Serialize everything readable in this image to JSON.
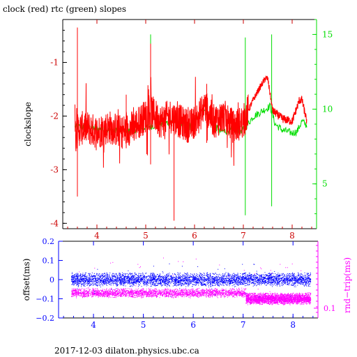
{
  "title": "clock (red) rtc (green) slopes",
  "footer": "2017-12-03 dilaton.physics.ubc.ca",
  "colors": {
    "clock": "#ff0000",
    "rtc": "#00dd00",
    "offset": "#0000ff",
    "rndtrip": "#ff00ff",
    "axis": "#000000"
  },
  "chart_data": [
    {
      "type": "line",
      "title": "clock (red) rtc (green) slopes",
      "xlabel": "",
      "ylabel": "clockslope",
      "y2label": "",
      "xlim": [
        3.3,
        8.5
      ],
      "ylim": [
        -4.1,
        -0.2
      ],
      "y2lim": [
        2.0,
        16.0
      ],
      "xticks": [
        "4",
        "5",
        "6",
        "7",
        "8"
      ],
      "yticks": [
        "-1",
        "-2",
        "-3",
        "-4"
      ],
      "y2ticks": [
        "5",
        "10",
        "15"
      ],
      "series": [
        {
          "color": "#ff0000",
          "axis": "left",
          "x": [
            3.55,
            3.75,
            4.0,
            4.25,
            4.5,
            4.75,
            5.0,
            5.1,
            5.3,
            5.5,
            5.7,
            5.9,
            6.1,
            6.2,
            6.4,
            6.6,
            6.8,
            7.0,
            7.05,
            7.2,
            7.35,
            7.45,
            7.5,
            7.6,
            7.8,
            8.0,
            8.15,
            8.2,
            8.3
          ],
          "y": [
            -2.3,
            -2.2,
            -2.3,
            -2.2,
            -2.3,
            -2.2,
            -2.0,
            -1.9,
            -2.1,
            -2.0,
            -2.1,
            -2.2,
            -2.0,
            -1.8,
            -2.1,
            -2.0,
            -2.2,
            -2.1,
            -2.0,
            -1.7,
            -1.45,
            -1.3,
            -1.3,
            -1.9,
            -2.05,
            -2.1,
            -1.7,
            -1.7,
            -2.1
          ],
          "spikes": [
            {
              "x": 3.6,
              "y1": -3.5,
              "y2": -0.35
            },
            {
              "x": 5.1,
              "y1": -2.9,
              "y2": -0.65
            },
            {
              "x": 5.58,
              "y1": -3.95,
              "y2": -2.2
            },
            {
              "x": 4.6,
              "y1": -2.6,
              "y2": -1.6
            },
            {
              "x": 6.25,
              "y1": -2.5,
              "y2": -1.4
            }
          ]
        },
        {
          "color": "#00dd00",
          "axis": "right",
          "x": [
            3.55,
            3.8,
            4.2,
            4.6,
            5.0,
            5.3,
            5.6,
            5.9,
            6.2,
            6.5,
            6.8,
            7.0,
            7.2,
            7.45,
            7.55,
            7.65,
            7.8,
            8.0,
            8.1,
            8.2,
            8.3
          ],
          "y": [
            8.8,
            8.8,
            8.6,
            8.5,
            8.8,
            9.0,
            9.2,
            8.8,
            10.0,
            8.5,
            8.6,
            8.6,
            9.5,
            10.0,
            10.2,
            9.0,
            8.6,
            8.4,
            8.5,
            9.2,
            8.9
          ],
          "spikes": [
            {
              "x": 7.04,
              "y1": 2.9,
              "y2": 14.8
            },
            {
              "x": 7.58,
              "y1": 3.5,
              "y2": 15.0
            },
            {
              "x": 5.1,
              "y1": 8.9,
              "y2": 15.0
            }
          ]
        }
      ]
    },
    {
      "type": "scatter",
      "xlabel": "",
      "ylabel": "offset(ms)",
      "y2label": "rnd−trip(ms)",
      "xlim": [
        3.3,
        8.5
      ],
      "ylim": [
        -0.2,
        0.2
      ],
      "xticks": [
        "4",
        "5",
        "6",
        "7",
        "8"
      ],
      "yticks": [
        "0.2",
        "0.1",
        "0",
        "−0.1",
        "−0.2"
      ],
      "y2ticks": [
        "0.1"
      ],
      "series": [
        {
          "color": "#0000ff",
          "x_range": [
            3.55,
            8.35
          ],
          "y_center": 0.0,
          "y_spread": 0.03
        },
        {
          "color": "#ff00ff",
          "x_range": [
            3.55,
            8.35
          ],
          "segments": [
            {
              "x": [
                3.55,
                7.05
              ],
              "y_center": -0.07,
              "y_spread": 0.02
            },
            {
              "x": [
                7.05,
                8.35
              ],
              "y_center": -0.1,
              "y_spread": 0.025
            }
          ]
        }
      ]
    }
  ]
}
